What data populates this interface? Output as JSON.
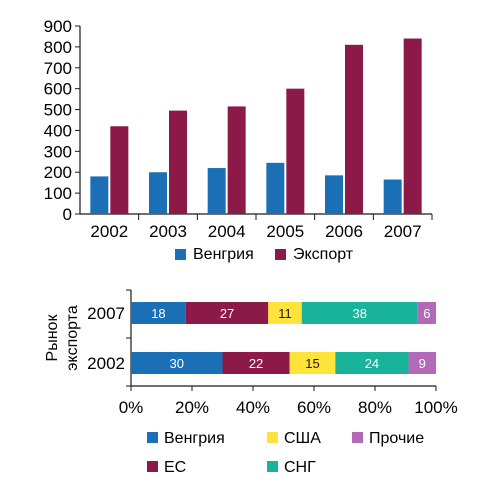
{
  "colors": {
    "hungary": "#1b6fb4",
    "export": "#8b1a48",
    "eu": "#8b1a48",
    "usa": "#ffe23a",
    "cis": "#18b39a",
    "other": "#b169b8",
    "axis": "#1a1a1a",
    "segment_label_light": "#ffffff",
    "segment_label_dark": "#1a1a1a"
  },
  "chart_data": [
    {
      "type": "bar",
      "title": "",
      "xlabel": "",
      "ylabel": "",
      "categories": [
        "2002",
        "2003",
        "2004",
        "2005",
        "2006",
        "2007"
      ],
      "y_ticks": [
        "0",
        "100",
        "200",
        "300",
        "400",
        "500",
        "600",
        "700",
        "800",
        "900"
      ],
      "ylim": [
        0,
        900
      ],
      "grid": false,
      "legend_position": "bottom",
      "series": [
        {
          "name": "Венгрия",
          "color_key": "hungary",
          "values": [
            180,
            200,
            220,
            245,
            185,
            165
          ]
        },
        {
          "name": "Экспорт",
          "color_key": "export",
          "values": [
            420,
            495,
            515,
            600,
            810,
            840
          ]
        }
      ]
    },
    {
      "type": "bar",
      "orientation": "horizontal",
      "stacked": true,
      "title": "",
      "ylabel": "Рынок экспорта",
      "categories": [
        "2007",
        "2002"
      ],
      "x_ticks": [
        "0%",
        "20%",
        "40%",
        "60%",
        "80%",
        "100%"
      ],
      "xlim": [
        0,
        100
      ],
      "grid": false,
      "legend_position": "bottom",
      "series": [
        {
          "name": "Венгрия",
          "color_key": "hungary",
          "values": [
            18,
            30
          ]
        },
        {
          "name": "ЕС",
          "color_key": "eu",
          "values": [
            27,
            22
          ]
        },
        {
          "name": "США",
          "color_key": "usa",
          "values": [
            11,
            15
          ]
        },
        {
          "name": "СНГ",
          "color_key": "cis",
          "values": [
            38,
            24
          ]
        },
        {
          "name": "Прочие",
          "color_key": "other",
          "values": [
            6,
            9
          ]
        }
      ]
    }
  ]
}
